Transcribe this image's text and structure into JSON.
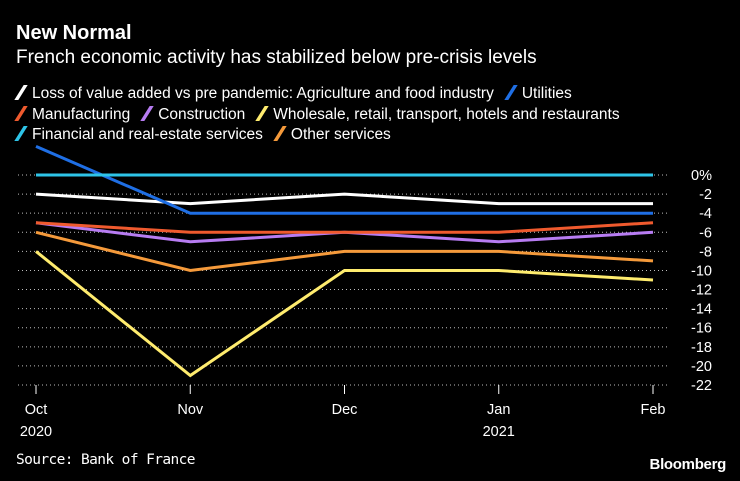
{
  "header": {
    "title": "New Normal",
    "subtitle": "French economic activity has stabilized below pre-crisis levels"
  },
  "legend": [
    {
      "label": "Loss of value added vs pre pandemic: Agriculture and food industry",
      "color": "#ffffff"
    },
    {
      "label": "Utilities",
      "color": "#1f6fe5"
    },
    {
      "label": "Manufacturing",
      "color": "#ef5a2e"
    },
    {
      "label": "Construction",
      "color": "#b77cf2"
    },
    {
      "label": "Wholesale, retail, transport, hotels and restaurants",
      "color": "#ffec6e"
    },
    {
      "label": "Financial and real-estate services",
      "color": "#2ec4e8"
    },
    {
      "label": "Other services",
      "color": "#f59a3b"
    }
  ],
  "footer": {
    "source": "Source: Bank of France",
    "brand": "Bloomberg"
  },
  "chart_data": {
    "type": "line",
    "title": "New Normal",
    "subtitle": "French economic activity has stabilized below pre-crisis levels",
    "x": [
      "Oct",
      "Nov",
      "Dec",
      "Jan",
      "Feb"
    ],
    "x_year_labels": [
      "2020",
      "",
      "",
      "2021",
      ""
    ],
    "y_ticks": [
      "0%",
      "-2",
      "-4",
      "-6",
      "-8",
      "-10",
      "-12",
      "-14",
      "-16",
      "-18",
      "-20",
      "-22"
    ],
    "ylim": [
      -22,
      0
    ],
    "y_axis_side": "right",
    "series": [
      {
        "name": "Loss of value added vs pre pandemic: Agriculture and food industry",
        "color": "#ffffff",
        "values": [
          -2,
          -3,
          -2,
          -3,
          -3
        ]
      },
      {
        "name": "Utilities",
        "color": "#1f6fe5",
        "values": [
          3,
          -4,
          -4,
          -4,
          -4
        ]
      },
      {
        "name": "Manufacturing",
        "color": "#ef5a2e",
        "values": [
          -5,
          -6,
          -6,
          -6,
          -5
        ]
      },
      {
        "name": "Construction",
        "color": "#b77cf2",
        "values": [
          -5,
          -7,
          -6,
          -7,
          -6
        ]
      },
      {
        "name": "Wholesale, retail, transport, hotels and restaurants",
        "color": "#ffec6e",
        "values": [
          -8,
          -21,
          -10,
          -10,
          -11
        ]
      },
      {
        "name": "Financial and real-estate services",
        "color": "#2ec4e8",
        "values": [
          0,
          0,
          0,
          0,
          0
        ]
      },
      {
        "name": "Other services",
        "color": "#f59a3b",
        "values": [
          -6,
          -10,
          -8,
          -8,
          -9
        ]
      }
    ]
  }
}
